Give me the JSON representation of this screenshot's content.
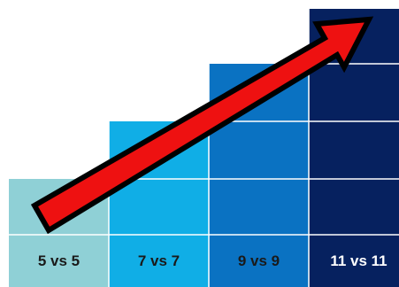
{
  "steps": [
    {
      "label": "5 vs 5",
      "level": 1,
      "color": "#8fd0d6",
      "text_color": "#1a1a1a"
    },
    {
      "label": "7 vs 7",
      "level": 2,
      "color": "#10aee6",
      "text_color": "#1a1a1a"
    },
    {
      "label": "9 vs 9",
      "level": 3,
      "color": "#0a72c2",
      "text_color": "#1a1a1a"
    },
    {
      "label": "11 vs 11",
      "level": 4,
      "color": "#06215f",
      "text_color": "#ffffff"
    }
  ],
  "colors": {
    "arrow_fill": "#ee1111",
    "arrow_stroke": "#000000",
    "grid_line": "#ffffff"
  },
  "icons": {
    "arrow": "up-right-arrow-icon"
  }
}
